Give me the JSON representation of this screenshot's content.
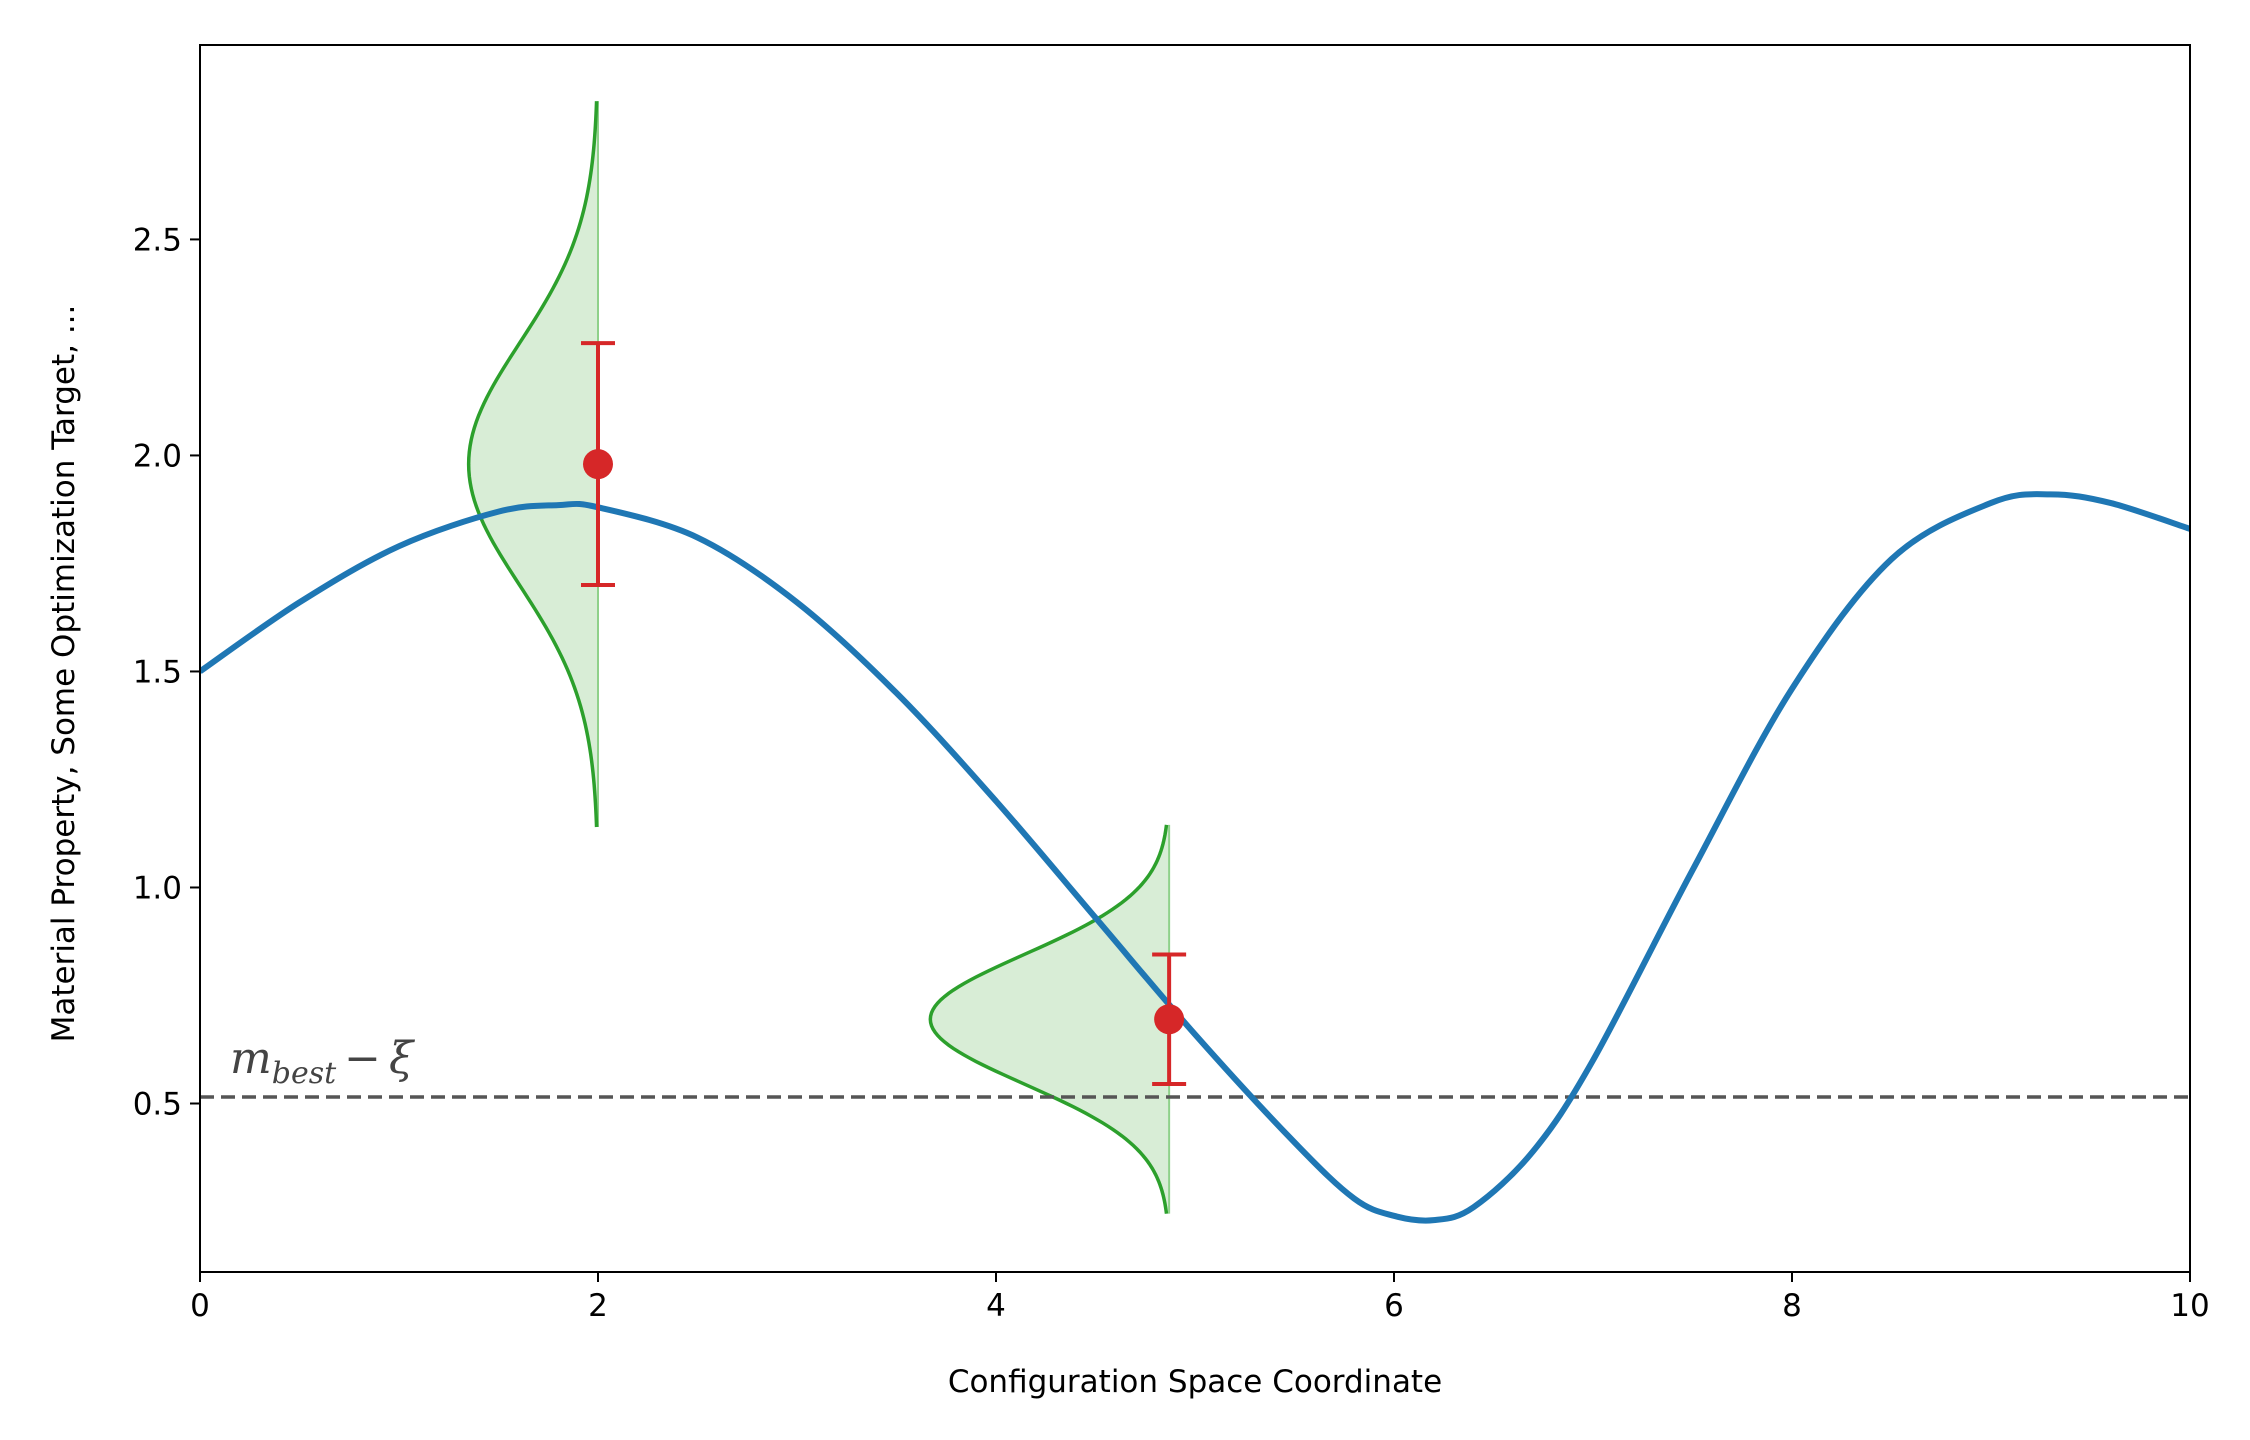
{
  "chart_data": {
    "type": "line",
    "title": "",
    "xlabel": "Configuration Space Coordinate",
    "ylabel": "Material Property, Some Optimization Target, ...",
    "xlim": [
      0,
      10
    ],
    "ylim": [
      0.11,
      2.95
    ],
    "xticks": [
      0,
      2,
      4,
      6,
      8,
      10
    ],
    "yticks": [
      0.5,
      1.0,
      1.5,
      2.0,
      2.5
    ],
    "xtick_labels": [
      "0",
      "2",
      "4",
      "6",
      "8",
      "10"
    ],
    "ytick_labels": [
      "0.5",
      "1.0",
      "1.5",
      "2.0",
      "2.5"
    ],
    "grid": false,
    "legend": "none",
    "series": [
      {
        "kind": "line",
        "color": "#1f77b4",
        "x": [
          0,
          0.5,
          1.0,
          1.5,
          1.8,
          2.0,
          2.5,
          3.0,
          3.5,
          4.0,
          4.5,
          5.0,
          5.5,
          5.8,
          6.0,
          6.2,
          6.4,
          6.7,
          7.0,
          7.5,
          8.0,
          8.5,
          9.0,
          9.3,
          9.6,
          10.0
        ],
        "y": [
          1.5,
          1.66,
          1.79,
          1.87,
          1.885,
          1.88,
          1.81,
          1.66,
          1.45,
          1.2,
          0.93,
          0.66,
          0.41,
          0.28,
          0.24,
          0.23,
          0.26,
          0.39,
          0.6,
          1.04,
          1.46,
          1.76,
          1.89,
          1.91,
          1.89,
          1.83
        ]
      }
    ],
    "threshold": {
      "y": 0.515,
      "color": "#555555",
      "style": "dashed",
      "label": "m_best − ξ",
      "label_main": "m",
      "label_sub": "best",
      "label_op": "−",
      "label_greek": "ξ"
    },
    "observations": [
      {
        "x": 2.0,
        "y": 1.98,
        "err_low": 1.7,
        "err_high": 2.26,
        "dist_mean": 1.98,
        "dist_sd": 0.28,
        "dist_ymin": 1.14,
        "dist_ymax": 2.82,
        "dist_width": 0.65,
        "color": "#d62728",
        "dist_color": "#2ca02c",
        "dist_fill": "#d8edd6"
      },
      {
        "x": 4.87,
        "y": 0.695,
        "err_low": 0.545,
        "err_high": 0.845,
        "dist_mean": 0.695,
        "dist_sd": 0.15,
        "dist_ymin": 0.245,
        "dist_ymax": 1.145,
        "dist_width": 1.2,
        "color": "#d62728",
        "dist_color": "#2ca02c",
        "dist_fill": "#d8edd6"
      }
    ]
  }
}
